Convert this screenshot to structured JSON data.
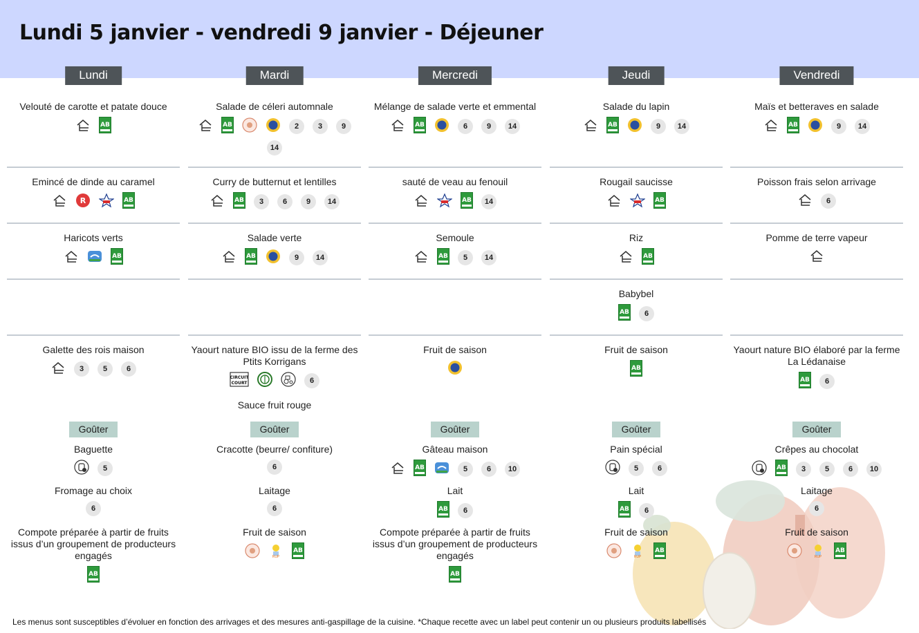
{
  "title": "Lundi 5 janvier - vendredi 9 janvier  - Déjeuner",
  "footer": "Les menus sont susceptibles d’évoluer en fonction des arrivages et des mesures anti-gaspillage de la cuisine. *Chaque recette avec un label peut contenir un ou plusieurs produits labellisés",
  "colors": {
    "header_bg": "#cdd7ff",
    "day_bg": "#4e5458",
    "gouter_bg": "#b9d2cc",
    "separator": "#c5ccd3"
  },
  "gouter_label": "Goûter",
  "days": [
    {
      "name": "Lundi",
      "starter": {
        "name": "Velouté de carotte et patate douce",
        "icons": [
          "house-icon",
          "ab-bio-icon"
        ],
        "allergens": []
      },
      "main": {
        "name": "Emincé de dinde au caramel",
        "icons": [
          "house-icon",
          "label-rouge-icon",
          "volaille-francaise-icon",
          "ab-bio-icon"
        ],
        "allergens": []
      },
      "side": {
        "name": "Haricots verts",
        "icons": [
          "house-icon",
          "bleu-blanc-coeur-icon",
          "ab-bio-icon"
        ],
        "allergens": []
      },
      "dairy": {
        "name": "",
        "icons": [],
        "allergens": []
      },
      "dessert": {
        "name": "Galette des rois maison",
        "icons": [
          "house-icon"
        ],
        "allergens": [
          "3",
          "5",
          "6"
        ]
      },
      "gouter": [
        {
          "name": "Baguette",
          "icons": [
            "local-bakery-icon"
          ],
          "allergens": [
            "5"
          ]
        },
        {
          "name": "Fromage au choix",
          "icons": [],
          "allergens": [
            "6"
          ]
        },
        {
          "name": "Compote préparée à partir de fruits issus d’un groupement de producteurs engagés",
          "icons": [
            "ab-bio-icon"
          ],
          "allergens": []
        }
      ]
    },
    {
      "name": "Mardi",
      "starter": {
        "name": "Salade de céleri automnale",
        "icons": [
          "house-icon",
          "ab-bio-icon",
          "vergers-ecoresponsables-icon",
          "igp-icon"
        ],
        "allergens": [
          "2",
          "3",
          "9",
          "14"
        ]
      },
      "main": {
        "name": "Curry de butternut et lentilles",
        "icons": [
          "house-icon",
          "ab-bio-icon"
        ],
        "allergens": [
          "3",
          "6",
          "9",
          "14"
        ]
      },
      "side": {
        "name": "Salade verte",
        "icons": [
          "house-icon",
          "ab-bio-icon",
          "igp-icon"
        ],
        "allergens": [
          "9",
          "14"
        ]
      },
      "dairy": {
        "name": "",
        "icons": [],
        "allergens": []
      },
      "dessert": {
        "name": "Yaourt nature BIO issu de la ferme des Ptits Korrigans",
        "icons": [
          "circuit-court-icon",
          "eco-leaf-icon",
          "farm-tractor-icon"
        ],
        "allergens": [
          "6"
        ],
        "extra": "Sauce fruit rouge"
      },
      "gouter": [
        {
          "name": "Cracotte (beurre/ confiture)",
          "icons": [],
          "allergens": [
            "6"
          ]
        },
        {
          "name": "Laitage",
          "icons": [],
          "allergens": [
            "6"
          ]
        },
        {
          "name": "Fruit de saison",
          "icons": [
            "vergers-ecoresponsables-icon",
            "rup-icon",
            "ab-bio-icon"
          ],
          "allergens": []
        }
      ]
    },
    {
      "name": "Mercredi",
      "starter": {
        "name": "Mélange de salade verte et emmental",
        "icons": [
          "house-icon",
          "ab-bio-icon",
          "igp-icon"
        ],
        "allergens": [
          "6",
          "9",
          "14"
        ]
      },
      "main": {
        "name": "sauté de veau au fenouil",
        "icons": [
          "house-icon",
          "viande-francaise-icon",
          "ab-bio-icon"
        ],
        "allergens": [
          "14"
        ]
      },
      "side": {
        "name": "Semoule",
        "icons": [
          "house-icon",
          "ab-bio-icon"
        ],
        "allergens": [
          "5",
          "14"
        ]
      },
      "dairy": {
        "name": "",
        "icons": [],
        "allergens": []
      },
      "dessert": {
        "name": "Fruit de saison",
        "icons": [
          "igp-icon"
        ],
        "allergens": []
      },
      "gouter": [
        {
          "name": "Gâteau maison",
          "icons": [
            "house-icon",
            "ab-bio-icon",
            "bleu-blanc-coeur-icon"
          ],
          "allergens": [
            "5",
            "6",
            "10"
          ]
        },
        {
          "name": "Lait",
          "icons": [
            "ab-bio-icon"
          ],
          "allergens": [
            "6"
          ]
        },
        {
          "name": "Compote préparée à partir de fruits issus d’un groupement de producteurs engagés",
          "icons": [
            "ab-bio-icon"
          ],
          "allergens": []
        }
      ]
    },
    {
      "name": "Jeudi",
      "starter": {
        "name": "Salade du lapin",
        "icons": [
          "house-icon",
          "ab-bio-icon",
          "igp-icon"
        ],
        "allergens": [
          "9",
          "14"
        ]
      },
      "main": {
        "name": "Rougail saucisse",
        "icons": [
          "house-icon",
          "viande-francaise-icon",
          "ab-bio-icon"
        ],
        "allergens": []
      },
      "side": {
        "name": "Riz",
        "icons": [
          "house-icon",
          "ab-bio-icon"
        ],
        "allergens": []
      },
      "dairy": {
        "name": "Babybel",
        "icons": [
          "ab-bio-icon"
        ],
        "allergens": [
          "6"
        ]
      },
      "dessert": {
        "name": "Fruit de saison",
        "icons": [
          "ab-bio-icon"
        ],
        "allergens": []
      },
      "gouter": [
        {
          "name": "Pain spécial",
          "icons": [
            "local-bakery-icon"
          ],
          "allergens": [
            "5",
            "6"
          ]
        },
        {
          "name": "Lait",
          "icons": [
            "ab-bio-icon"
          ],
          "allergens": [
            "6"
          ]
        },
        {
          "name": "Fruit de saison",
          "icons": [
            "vergers-ecoresponsables-icon",
            "rup-icon",
            "ab-bio-icon"
          ],
          "allergens": []
        }
      ]
    },
    {
      "name": "Vendredi",
      "starter": {
        "name": "Maïs et betteraves en salade",
        "icons": [
          "house-icon",
          "ab-bio-icon",
          "igp-icon"
        ],
        "allergens": [
          "9",
          "14"
        ]
      },
      "main": {
        "name": "Poisson frais selon arrivage",
        "icons": [
          "house-icon"
        ],
        "allergens": [
          "6"
        ]
      },
      "side": {
        "name": "Pomme de terre vapeur",
        "icons": [
          "house-icon"
        ],
        "allergens": []
      },
      "dairy": {
        "name": "",
        "icons": [],
        "allergens": []
      },
      "dessert": {
        "name": "Yaourt nature BIO élaboré par la ferme La Lédanaise",
        "icons": [
          "ab-bio-icon"
        ],
        "allergens": [
          "6"
        ]
      },
      "gouter": [
        {
          "name": "Crêpes au chocolat",
          "icons": [
            "local-bakery-icon",
            "ab-bio-icon"
          ],
          "allergens": [
            "3",
            "5",
            "6",
            "10"
          ]
        },
        {
          "name": "Laitage",
          "icons": [],
          "allergens": [
            "6"
          ]
        },
        {
          "name": "Fruit de saison",
          "icons": [
            "vergers-ecoresponsables-icon",
            "rup-icon",
            "ab-bio-icon"
          ],
          "allergens": []
        }
      ]
    }
  ]
}
